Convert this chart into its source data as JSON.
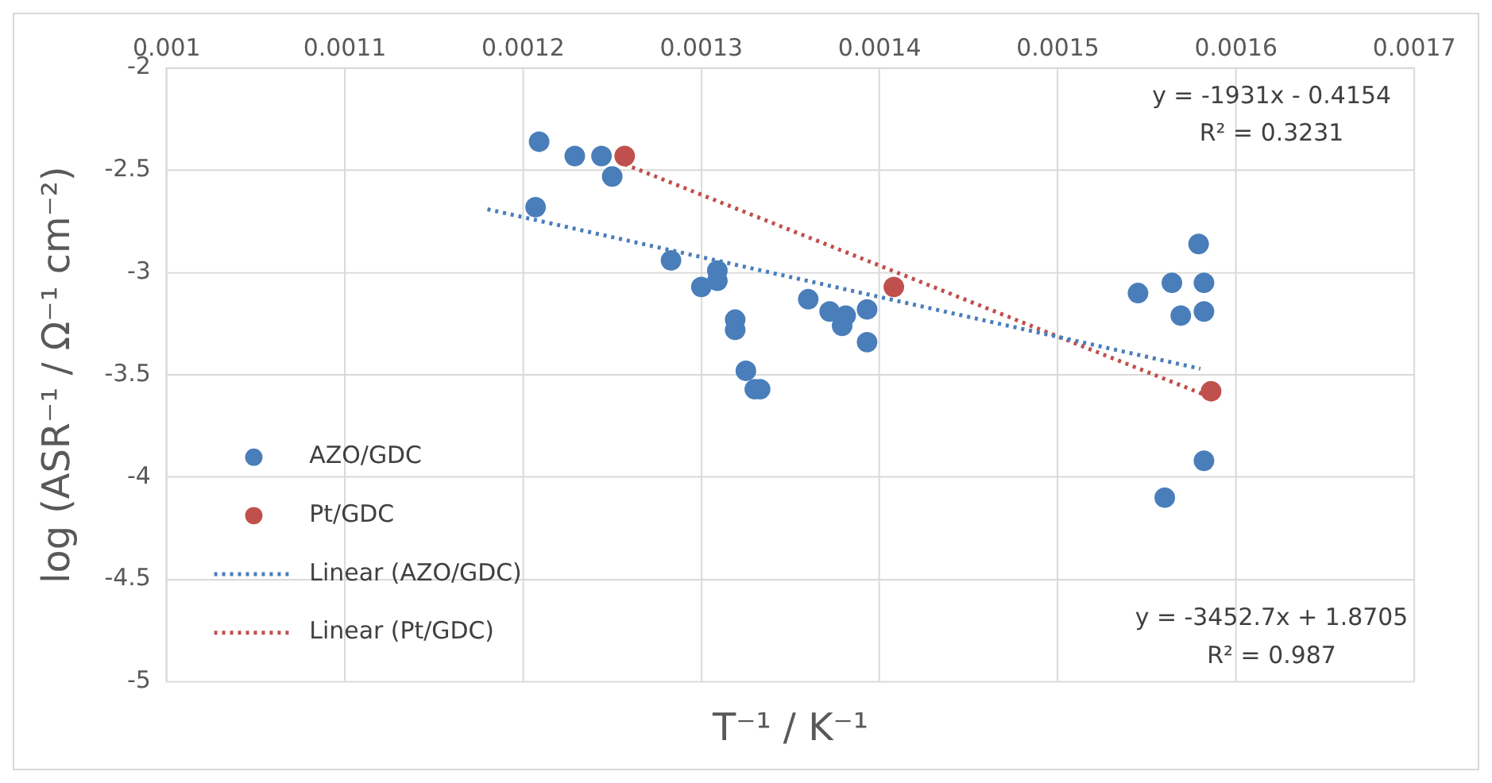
{
  "chart_data": {
    "type": "scatter",
    "xlabel": "T⁻¹ / K⁻¹",
    "ylabel": "log (ASR⁻¹ / Ω⁻¹ cm⁻²)",
    "xlim": [
      0.001,
      0.0017
    ],
    "xticks": [
      0.001,
      0.0011,
      0.0012,
      0.0013,
      0.0014,
      0.0015,
      0.0016,
      0.0017
    ],
    "ylim": [
      -5,
      -2
    ],
    "yticks": [
      -5,
      -4.5,
      -4,
      -3.5,
      -3,
      -2.5,
      -2
    ],
    "grid": true,
    "legend": "bottom left",
    "series": [
      {
        "name": "AZO/GDC",
        "marker": "circle",
        "color": "#4a7ebb",
        "x": [
          0.001209,
          0.001207,
          0.001229,
          0.001244,
          0.00125,
          0.001283,
          0.001309,
          0.001309,
          0.0013,
          0.001319,
          0.001319,
          0.001325,
          0.00133,
          0.001333,
          0.00136,
          0.001372,
          0.001381,
          0.001379,
          0.001393,
          0.001393,
          0.001579,
          0.001545,
          0.001564,
          0.001582,
          0.001569,
          0.001582,
          0.001582,
          0.00156
        ],
        "values": [
          -2.36,
          -2.68,
          -2.43,
          -2.43,
          -2.53,
          -2.94,
          -2.99,
          -3.04,
          -3.07,
          -3.23,
          -3.28,
          -3.48,
          -3.57,
          -3.57,
          -3.13,
          -3.19,
          -3.21,
          -3.26,
          -3.18,
          -3.34,
          -2.86,
          -3.1,
          -3.05,
          -3.05,
          -3.21,
          -3.19,
          -3.92,
          -4.1
        ]
      },
      {
        "name": "Pt/GDC",
        "marker": "circle",
        "color": "#c0504d",
        "x": [
          0.001257,
          0.001408,
          0.001586
        ],
        "values": [
          -2.43,
          -3.07,
          -3.58
        ]
      },
      {
        "name": "Linear (AZO/GDC)",
        "type": "line",
        "marker": "none",
        "line_style": "dotted",
        "color": "#4a7ebb",
        "x": [
          0.00118,
          0.00158
        ],
        "values": [
          -2.69,
          -3.47
        ]
      },
      {
        "name": "Linear (Pt/GDC)",
        "type": "line",
        "marker": "none",
        "line_style": "dotted",
        "color": "#c0504d",
        "x": [
          0.001257,
          0.001586
        ],
        "values": [
          -2.47,
          -3.61
        ]
      }
    ],
    "annotations": [
      "y = -1931x - 0.4154",
      "R² = 0.3231",
      "y = -3452.7x + 1.8705",
      "R² = 0.987"
    ]
  }
}
